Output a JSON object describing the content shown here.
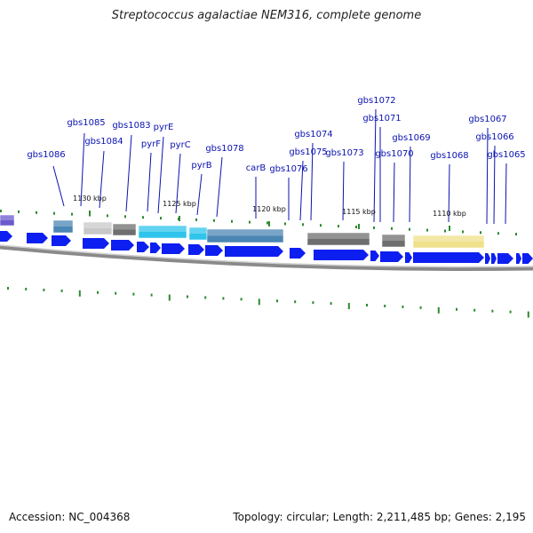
{
  "title": "Streptococcus agalactiae NEM316, complete genome",
  "footer": {
    "accession": "Accession: NC_004368",
    "summary": "Topology: circular; Length: 2,211,485 bp; Genes: 2,195"
  },
  "colors": {
    "gene_label": "#0a12b0",
    "cds_arrow": "#0d1ff0",
    "backbone": "#8a8a8a",
    "tick": "#2e8b2e",
    "feature_gray": "#6e6e6e",
    "feature_light_gray": "#c8c8c8",
    "feature_cyan": "#2ec4ec",
    "feature_steelblue": "#4b86b4",
    "feature_purple": "#6a5acd",
    "feature_khaki": "#efe08a"
  },
  "gene_labels": [
    "gbs1086",
    "gbs1085",
    "gbs1084",
    "gbs1083",
    "pyrF",
    "pyrE",
    "pyrC",
    "pyrB",
    "gbs1078",
    "carB",
    "gbs1076",
    "gbs1075",
    "gbs1074",
    "gbs1073",
    "gbs1072",
    "gbs1071",
    "gbs1070",
    "gbs1069",
    "gbs1068",
    "gbs1067",
    "gbs1066",
    "gbs1065"
  ],
  "tick_labels": [
    "1130 kbp",
    "1125 kbp",
    "1120 kbp",
    "1115 kbp",
    "1110 kbp"
  ],
  "legend_icons": {
    "forward_arrow": "right-arrow-icon"
  }
}
